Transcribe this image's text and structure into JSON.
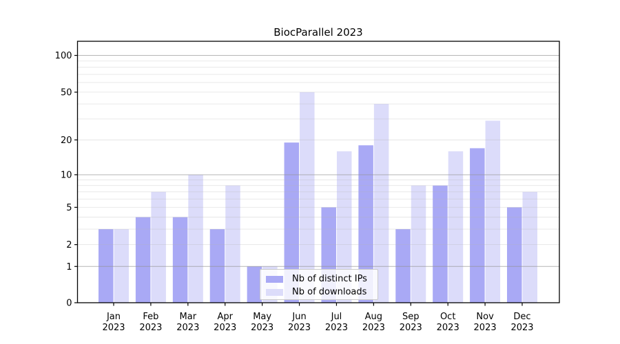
{
  "chart_data": {
    "type": "bar",
    "title": "BiocParallel 2023",
    "categories": [
      "Jan",
      "Feb",
      "Mar",
      "Apr",
      "May",
      "Jun",
      "Jul",
      "Aug",
      "Sep",
      "Oct",
      "Nov",
      "Dec"
    ],
    "year": "2023",
    "series": [
      {
        "name": "Nb of distinct IPs",
        "color": "#a9a9f5",
        "values": [
          3,
          4,
          4,
          3,
          1,
          19,
          5,
          18,
          3,
          8,
          17,
          5
        ]
      },
      {
        "name": "Nb of downloads",
        "color": "#dcdcfa",
        "values": [
          3,
          7,
          10,
          8,
          1,
          50,
          16,
          40,
          8,
          16,
          29,
          7
        ]
      }
    ],
    "ylabel": "",
    "xlabel": "",
    "yticks": [
      0,
      1,
      2,
      5,
      10,
      20,
      50,
      100
    ],
    "major_gridlines": [
      1,
      10,
      100
    ],
    "minor_gridlines": [
      2,
      3,
      4,
      5,
      6,
      7,
      8,
      9,
      20,
      30,
      40,
      50,
      60,
      70,
      80,
      90
    ],
    "yscale": "log10(1+v)",
    "ylim": [
      0,
      130
    ],
    "grid": "on, drawn above bars",
    "legend_position": "lower center, inside axes",
    "colors": {
      "axis": "#000000",
      "major_grid": "#c3c3c3",
      "minor_grid": "#ececec",
      "background": "#ffffff"
    }
  }
}
